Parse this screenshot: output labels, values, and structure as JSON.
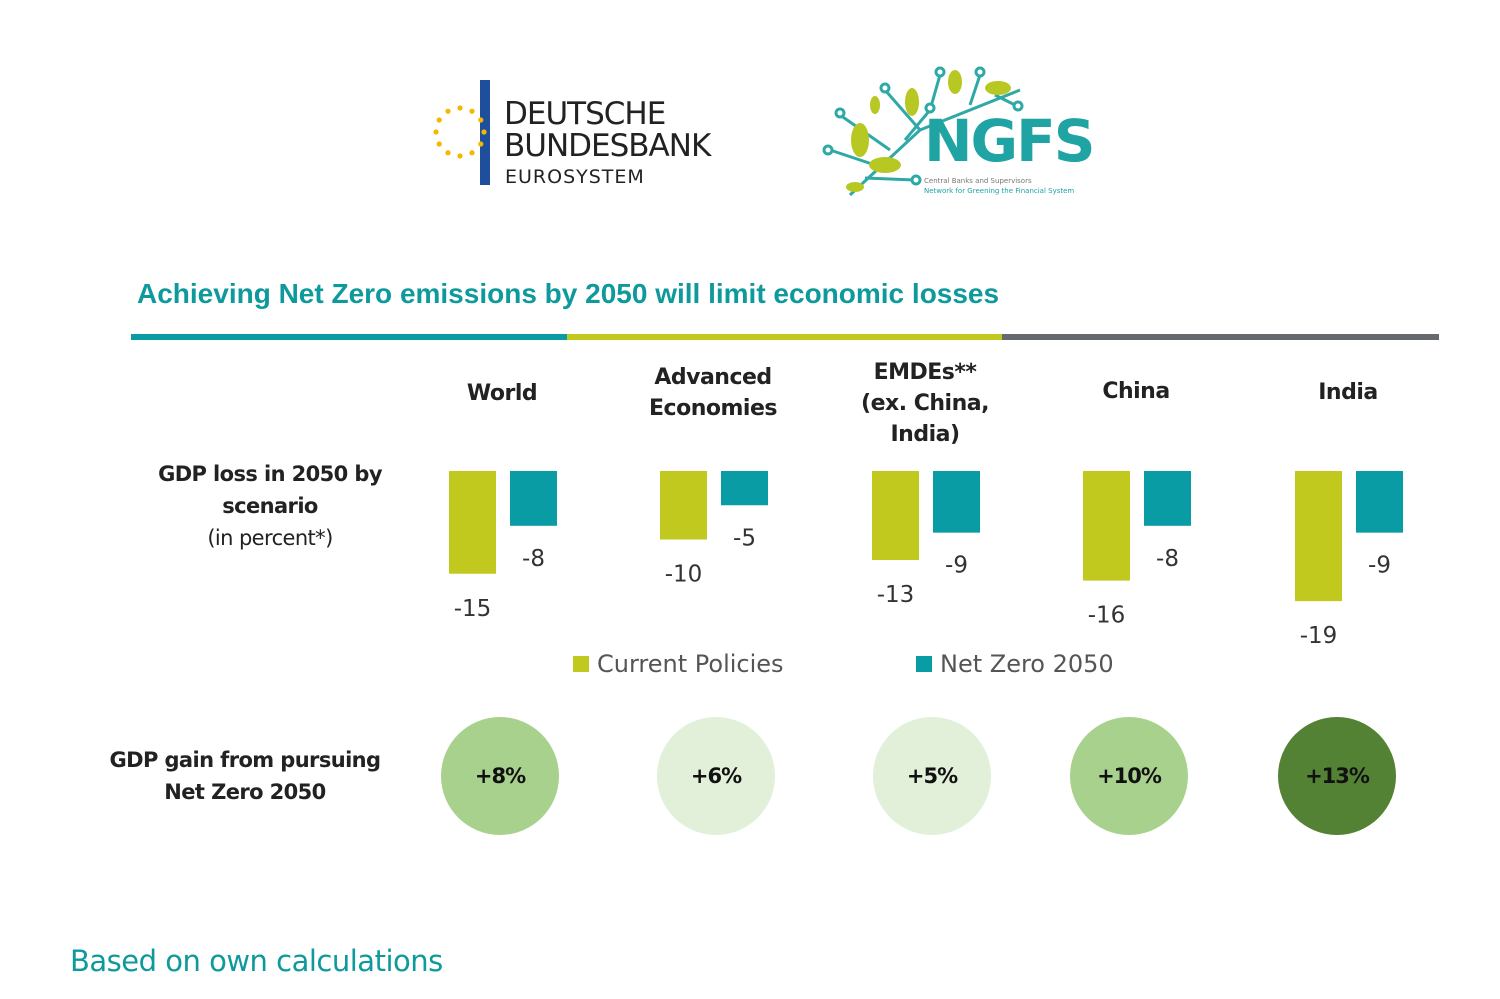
{
  "logos": {
    "bundesbank": {
      "line1": "DEUTSCHE",
      "line2": "BUNDESBANK",
      "line3": "EUROSYSTEM"
    },
    "ngfs": {
      "name": "NGFS",
      "tagline1": "Central Banks and Supervisors",
      "tagline2": "Network for Greening the Financial System"
    }
  },
  "title": "Achieving Net Zero emissions by 2050 will limit  economic losses",
  "colors": {
    "teal": "#0a9ca4",
    "lime": "#c2c91e",
    "gray": "#666a6e",
    "title": "#0e9a9c"
  },
  "row_labels": {
    "loss": [
      "GDP loss in 2050  by",
      "scenario",
      "(in percent*)"
    ],
    "gain": [
      "GDP gain from pursuing",
      "Net Zero 2050"
    ]
  },
  "chart_data": {
    "type": "bar",
    "categories": [
      "World",
      "Advanced Economies",
      "EMDEs** (ex. China, India)",
      "China",
      "India"
    ],
    "category_lines": [
      [
        "World"
      ],
      [
        "Advanced",
        "Economies"
      ],
      [
        "EMDEs**",
        "(ex. China,",
        "India)"
      ],
      [
        "China"
      ],
      [
        "India"
      ]
    ],
    "series": [
      {
        "name": "Current Policies",
        "color": "#c2c91e",
        "values": [
          -15,
          -10,
          -13,
          -16,
          -19
        ]
      },
      {
        "name": "Net Zero 2050",
        "color": "#0a9ca4",
        "values": [
          -8,
          -5,
          -9,
          -8,
          -9
        ]
      }
    ],
    "data_labels": true,
    "legend": "bottom",
    "grid": false,
    "ylabel": "GDP loss in 2050 by scenario (in percent*)"
  },
  "gains": [
    {
      "label": "+8%",
      "color": "#a9d18e"
    },
    {
      "label": "+6%",
      "color": "#e2f0d9"
    },
    {
      "label": "+5%",
      "color": "#e2f0d9"
    },
    {
      "label": "+10%",
      "color": "#a9d18e"
    },
    {
      "label": "+13%",
      "color": "#548235"
    }
  ],
  "footnote": "Based on own calculations"
}
